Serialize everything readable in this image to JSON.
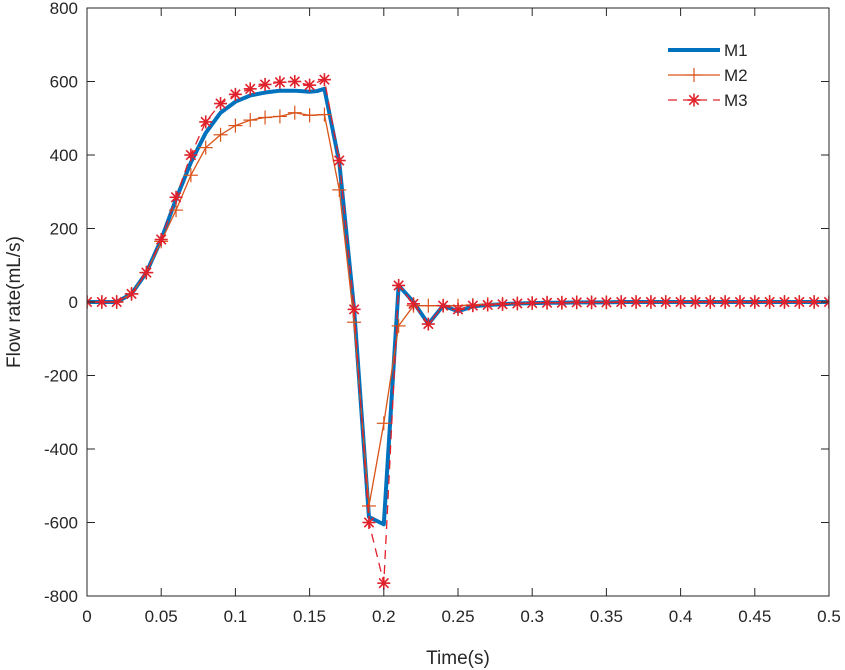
{
  "chart_data": {
    "type": "line",
    "xlabel": "Time(s)",
    "ylabel": "Flow rate(mL/s)",
    "xlim": [
      0,
      0.5
    ],
    "ylim": [
      -800,
      800
    ],
    "x_ticks": [
      0,
      0.05,
      0.1,
      0.15,
      0.2,
      0.25,
      0.3,
      0.35,
      0.4,
      0.45,
      0.5
    ],
    "x_tick_labels": [
      "0",
      "0.05",
      "0.1",
      "0.15",
      "0.2",
      "0.25",
      "0.3",
      "0.35",
      "0.4",
      "0.45",
      "0.5"
    ],
    "y_ticks": [
      -800,
      -600,
      -400,
      -200,
      0,
      200,
      400,
      600,
      800
    ],
    "y_tick_labels": [
      "-800",
      "-600",
      "-400",
      "-200",
      "0",
      "200",
      "400",
      "600",
      "800"
    ],
    "grid": false,
    "legend_position": "top-right",
    "series": [
      {
        "name": "M1",
        "color": "#0072BD",
        "line_style": "solid-thick",
        "marker": "none",
        "x": [
          0,
          0.01,
          0.02,
          0.03,
          0.04,
          0.05,
          0.06,
          0.07,
          0.08,
          0.09,
          0.1,
          0.11,
          0.12,
          0.13,
          0.14,
          0.15,
          0.155,
          0.16,
          0.17,
          0.18,
          0.19,
          0.2,
          0.21,
          0.22,
          0.23,
          0.24,
          0.25,
          0.26,
          0.27,
          0.28,
          0.29,
          0.3,
          0.31,
          0.32,
          0.33,
          0.34,
          0.35,
          0.36,
          0.37,
          0.38,
          0.39,
          0.4,
          0.41,
          0.42,
          0.43,
          0.44,
          0.45,
          0.46,
          0.47,
          0.48,
          0.49,
          0.5
        ],
        "y": [
          0,
          0,
          0,
          22,
          80,
          170,
          280,
          380,
          460,
          515,
          545,
          562,
          570,
          575,
          575,
          572,
          574,
          580,
          380,
          -20,
          -585,
          -605,
          45,
          0,
          -60,
          -10,
          -25,
          -12,
          -8,
          -6,
          -4,
          -3,
          -2,
          -2,
          -1,
          -1,
          -1,
          0,
          0,
          0,
          0,
          0,
          0,
          0,
          0,
          0,
          0,
          0,
          0,
          0,
          0,
          0
        ]
      },
      {
        "name": "M2",
        "color": "#D95319",
        "line_style": "solid",
        "marker": "+",
        "x": [
          0,
          0.01,
          0.02,
          0.03,
          0.04,
          0.05,
          0.06,
          0.07,
          0.08,
          0.09,
          0.1,
          0.11,
          0.12,
          0.13,
          0.14,
          0.15,
          0.16,
          0.17,
          0.18,
          0.19,
          0.2,
          0.21,
          0.22,
          0.23,
          0.24,
          0.25,
          0.26,
          0.27,
          0.28,
          0.29,
          0.3,
          0.31,
          0.32,
          0.33,
          0.34,
          0.35,
          0.36,
          0.37,
          0.38,
          0.39,
          0.4,
          0.41,
          0.42,
          0.43,
          0.44,
          0.45,
          0.46,
          0.47,
          0.48,
          0.49,
          0.5
        ],
        "y": [
          0,
          0,
          0,
          22,
          80,
          165,
          250,
          345,
          420,
          455,
          480,
          495,
          502,
          505,
          515,
          508,
          510,
          305,
          -55,
          -555,
          -330,
          -65,
          -10,
          -10,
          -10,
          -10,
          -8,
          -6,
          -5,
          -4,
          -3,
          -2,
          -2,
          -1,
          -1,
          -1,
          0,
          0,
          0,
          0,
          0,
          0,
          0,
          0,
          0,
          0,
          0,
          0,
          0,
          0,
          0
        ]
      },
      {
        "name": "M3",
        "color": "#E0202A",
        "line_style": "dashed",
        "marker": "*",
        "x": [
          0,
          0.01,
          0.02,
          0.03,
          0.04,
          0.05,
          0.06,
          0.07,
          0.08,
          0.09,
          0.1,
          0.11,
          0.12,
          0.13,
          0.14,
          0.15,
          0.16,
          0.17,
          0.18,
          0.19,
          0.2,
          0.21,
          0.22,
          0.23,
          0.24,
          0.25,
          0.26,
          0.27,
          0.28,
          0.29,
          0.3,
          0.31,
          0.32,
          0.33,
          0.34,
          0.35,
          0.36,
          0.37,
          0.38,
          0.39,
          0.4,
          0.41,
          0.42,
          0.43,
          0.44,
          0.45,
          0.46,
          0.47,
          0.48,
          0.49,
          0.5
        ],
        "y": [
          0,
          0,
          0,
          22,
          80,
          170,
          285,
          400,
          490,
          540,
          565,
          580,
          592,
          598,
          600,
          590,
          605,
          385,
          -20,
          -600,
          -765,
          45,
          -5,
          -60,
          -10,
          -20,
          -10,
          -8,
          -6,
          -4,
          -3,
          -2,
          -2,
          -1,
          -1,
          -1,
          0,
          0,
          0,
          0,
          0,
          0,
          0,
          0,
          0,
          0,
          0,
          0,
          0,
          0,
          0
        ]
      }
    ]
  }
}
